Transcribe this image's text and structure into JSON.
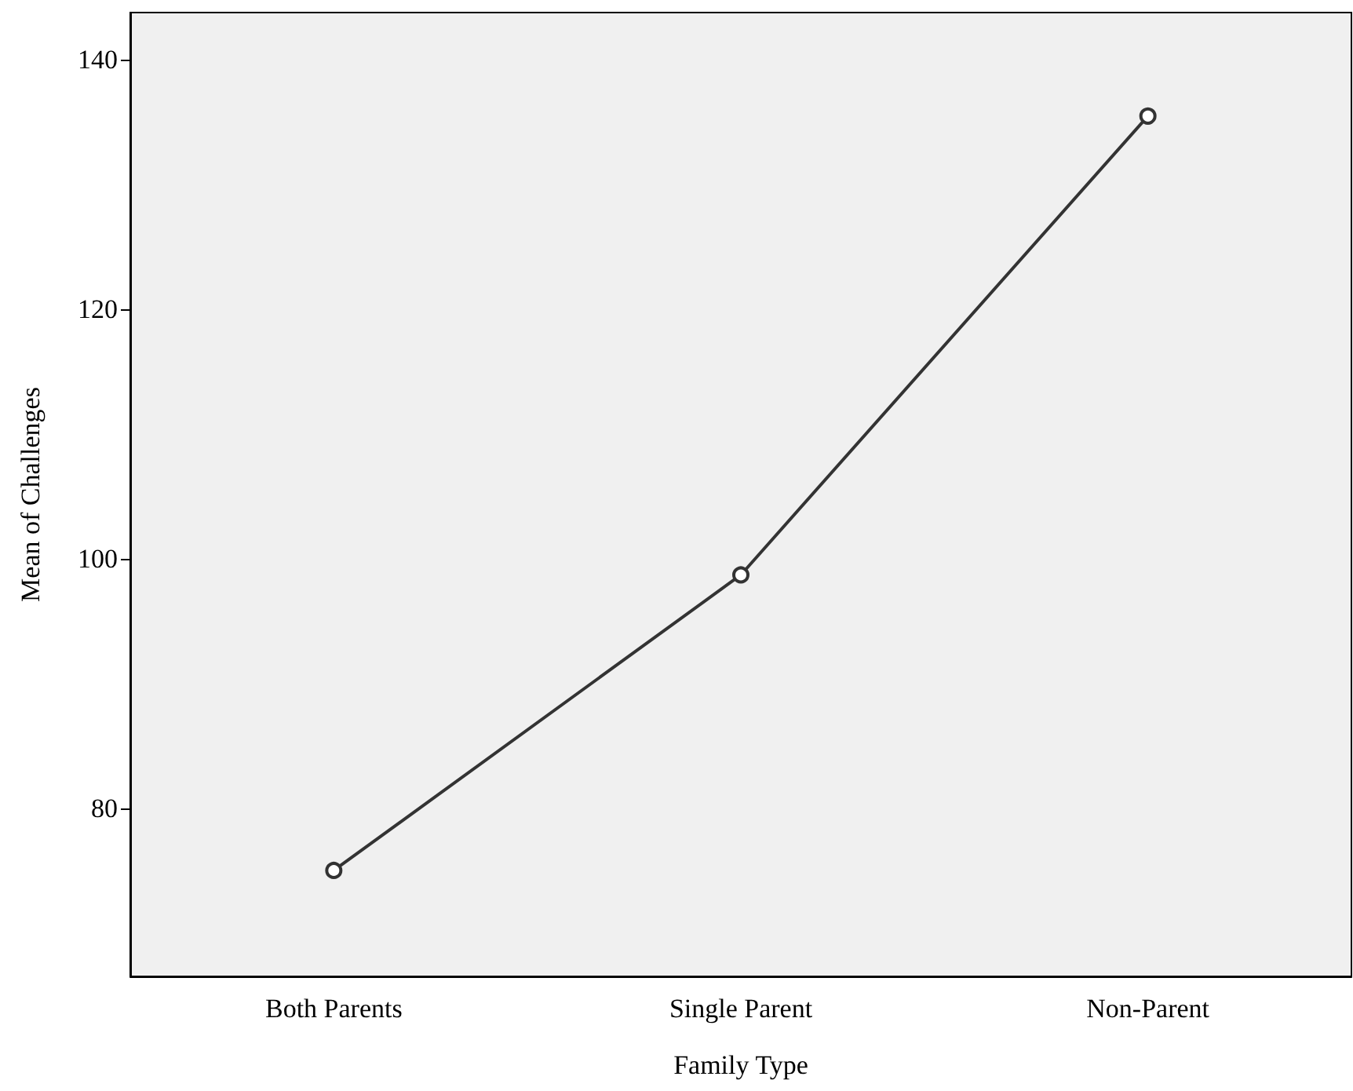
{
  "chart_data": {
    "type": "line",
    "xlabel": "Family Type",
    "ylabel": "Mean of Challenges",
    "categories": [
      "Both Parents",
      "Single Parent",
      "Non-Parent"
    ],
    "series": [
      {
        "color": "#333333",
        "values": [
          75,
          98.7,
          135.5
        ]
      }
    ],
    "ylim": [
      66.5,
      143.8
    ],
    "yticks": [
      80,
      100,
      120,
      140
    ],
    "grid": false,
    "marker": "circle",
    "line_style": "solid"
  }
}
